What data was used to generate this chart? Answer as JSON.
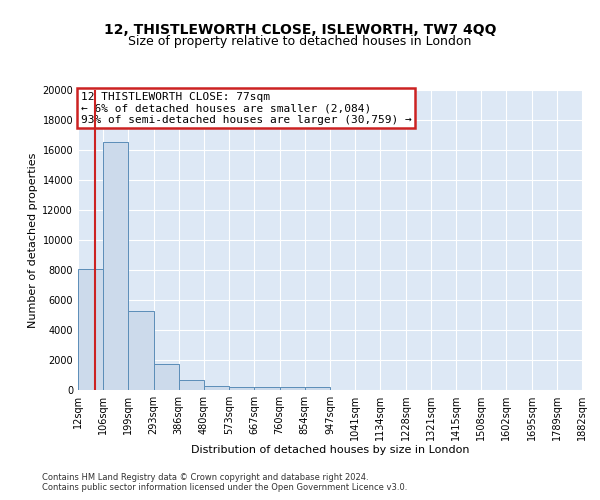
{
  "title": "12, THISTLEWORTH CLOSE, ISLEWORTH, TW7 4QQ",
  "subtitle": "Size of property relative to detached houses in London",
  "xlabel": "Distribution of detached houses by size in London",
  "ylabel": "Number of detached properties",
  "bin_labels": [
    "12sqm",
    "106sqm",
    "199sqm",
    "293sqm",
    "386sqm",
    "480sqm",
    "573sqm",
    "667sqm",
    "760sqm",
    "854sqm",
    "947sqm",
    "1041sqm",
    "1134sqm",
    "1228sqm",
    "1321sqm",
    "1415sqm",
    "1508sqm",
    "1602sqm",
    "1695sqm",
    "1789sqm",
    "1882sqm"
  ],
  "bar_heights": [
    8100,
    16500,
    5300,
    1750,
    700,
    300,
    230,
    200,
    190,
    180,
    0,
    0,
    0,
    0,
    0,
    0,
    0,
    0,
    0,
    0
  ],
  "bar_color": "#ccdaeb",
  "bar_edge_color": "#5b8db8",
  "bg_color": "#dde8f5",
  "fig_bg_color": "#ffffff",
  "grid_color": "#ffffff",
  "red_line_color": "#cc2222",
  "annotation_box_color": "#cc2222",
  "ylim": [
    0,
    20000
  ],
  "yticks": [
    0,
    2000,
    4000,
    6000,
    8000,
    10000,
    12000,
    14000,
    16000,
    18000,
    20000
  ],
  "annotation_line1": "12 THISTLEWORTH CLOSE: 77sqm",
  "annotation_line2": "← 6% of detached houses are smaller (2,084)",
  "annotation_line3": "93% of semi-detached houses are larger (30,759) →",
  "footnote1": "Contains HM Land Registry data © Crown copyright and database right 2024.",
  "footnote2": "Contains public sector information licensed under the Open Government Licence v3.0.",
  "title_fontsize": 10,
  "subtitle_fontsize": 9,
  "annotation_fontsize": 8,
  "axis_label_fontsize": 8,
  "tick_fontsize": 7,
  "footnote_fontsize": 6
}
